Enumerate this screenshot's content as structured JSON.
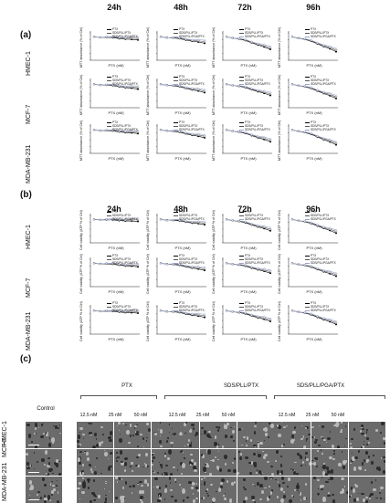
{
  "panels": {
    "a": "(a)",
    "b": "(b)",
    "c": "(c)"
  },
  "time_points": [
    "24h",
    "48h",
    "72h",
    "96h"
  ],
  "cell_lines": [
    "HMEC-1",
    "MCF-7",
    "MDA-MB-231"
  ],
  "section_a": {
    "ylabel": "MTT absorbance (% of Ctrl)",
    "xlabel": "PTX (nM)",
    "legend": [
      "PTX",
      "SDS/PLL/PTX",
      "SDS/PLL/PGA/PTX"
    ]
  },
  "section_b": {
    "ylabel": "Cell viability (ATP % of Ctrl)",
    "xlabel": "PTX (nM)",
    "legend": [
      "PTX",
      "SDS/PLL/PTX",
      "SDS/PLL/PGA/PTX"
    ]
  },
  "section_c": {
    "control": "Control",
    "groups": [
      "PTX",
      "SDS/PLL/PTX",
      "SDS/PLL/PGA/PTX"
    ],
    "concentrations": [
      "12.5 nM",
      "25 nM",
      "50 nM"
    ]
  },
  "colors": {
    "ptx": "#000000",
    "sds_pll": "#555555",
    "sds_pll_pga": "#9aa3c8"
  },
  "chart_data": {
    "type": "line",
    "note_series": [
      "PTX",
      "SDS/PLL/PTX",
      "SDS/PLL/PGA/PTX"
    ],
    "x": [
      1,
      5,
      10,
      25,
      50,
      100,
      150,
      200
    ],
    "ylim": [
      0,
      125
    ]
  }
}
